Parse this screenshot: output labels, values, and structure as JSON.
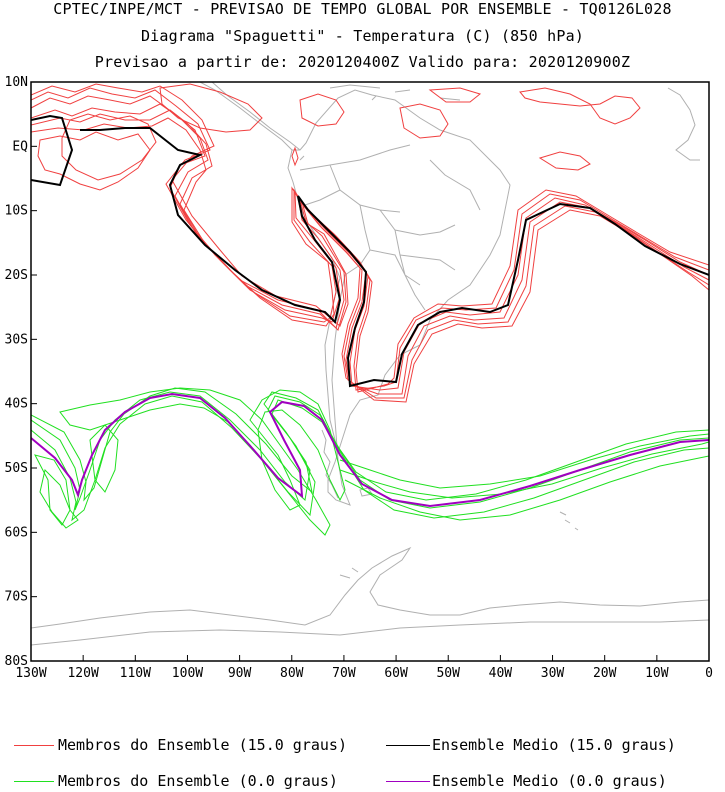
{
  "header": {
    "line1": "CPTEC/INPE/MCT - PREVISAO DE TEMPO GLOBAL POR ENSEMBLE - TQ0126L028",
    "line2": "Diagrama \"Spaguetti\" - Temperatura (C) (850 hPa)",
    "line3": "Previsao a partir de: 2020120400Z  Valido para: 2020120900Z"
  },
  "map": {
    "lat_labels": [
      "10N",
      "EQ",
      "10S",
      "20S",
      "30S",
      "40S",
      "50S",
      "60S",
      "70S",
      "80S"
    ],
    "lon_labels": [
      "130W",
      "120W",
      "110W",
      "100W",
      "90W",
      "80W",
      "70W",
      "60W",
      "50W",
      "40W",
      "30W",
      "20W",
      "10W",
      "0"
    ],
    "extent": {
      "lon_min": -130,
      "lon_max": 0,
      "lat_min": -80,
      "lat_max": 10
    },
    "colors": {
      "members_15": "#f04040",
      "mean_15": "#000000",
      "members_0": "#20e020",
      "mean_0": "#a000c0",
      "land": "#b0b0b0"
    }
  },
  "legend": {
    "members_15": "Membros do Ensemble (15.0 graus)",
    "mean_15": "Ensemble Medio (15.0 graus)",
    "members_0": "Membros do Ensemble (0.0 graus)",
    "mean_0": "Ensemble Medio (0.0 graus)"
  }
}
